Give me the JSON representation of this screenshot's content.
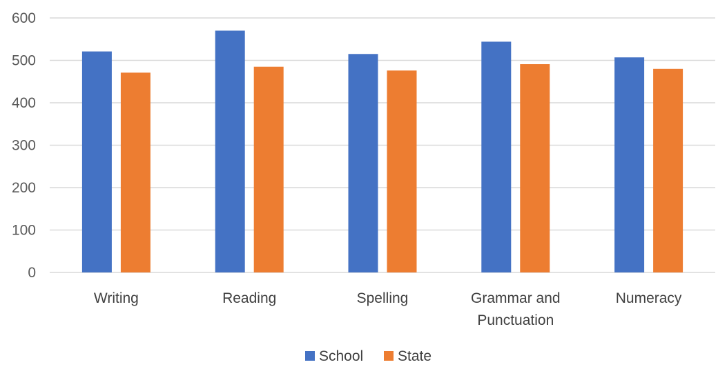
{
  "chart_data": {
    "type": "bar",
    "categories": [
      [
        "Writing"
      ],
      [
        "Reading"
      ],
      [
        "Spelling"
      ],
      [
        "Grammar and",
        "Punctuation"
      ],
      [
        "Numeracy"
      ]
    ],
    "series": [
      {
        "name": "School",
        "color": "#4472c4",
        "values": [
          521,
          570,
          515,
          544,
          507
        ]
      },
      {
        "name": "State",
        "color": "#ed7d31",
        "values": [
          471,
          485,
          476,
          491,
          480
        ]
      }
    ],
    "yticks": [
      "0",
      "100",
      "200",
      "300",
      "400",
      "500",
      "600"
    ],
    "ylim": [
      0,
      600
    ],
    "grid": true,
    "legend_position": "bottom",
    "title": "",
    "xlabel": "",
    "ylabel": ""
  }
}
